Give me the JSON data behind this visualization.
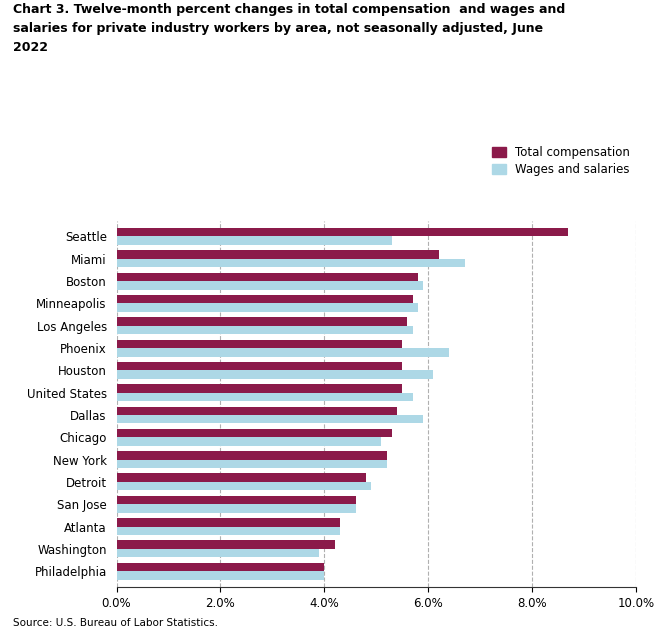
{
  "title_line1": "Chart 3. Twelve-month percent changes in total compensation  and wages and",
  "title_line2": "salaries for private industry workers by area, not seasonally adjusted, June",
  "title_line3": "2022",
  "categories": [
    "Philadelphia",
    "Washington",
    "Atlanta",
    "San Jose",
    "Detroit",
    "New York",
    "Chicago",
    "Dallas",
    "United States",
    "Houston",
    "Phoenix",
    "Los Angeles",
    "Minneapolis",
    "Boston",
    "Miami",
    "Seattle"
  ],
  "total_compensation": [
    4.0,
    4.2,
    4.3,
    4.6,
    4.8,
    5.2,
    5.3,
    5.4,
    5.5,
    5.5,
    5.5,
    5.6,
    5.7,
    5.8,
    6.2,
    8.7
  ],
  "wages_salaries": [
    4.0,
    3.9,
    4.3,
    4.6,
    4.9,
    5.2,
    5.1,
    5.9,
    5.7,
    6.1,
    6.4,
    5.7,
    5.8,
    5.9,
    6.7,
    5.3
  ],
  "color_total": "#8B1A4A",
  "color_wages": "#ADD8E6",
  "xlim": [
    0,
    10.0
  ],
  "xticks": [
    0.0,
    2.0,
    4.0,
    6.0,
    8.0,
    10.0
  ],
  "xtick_labels": [
    "0.0%",
    "2.0%",
    "4.0%",
    "6.0%",
    "8.0%",
    "10.0%"
  ],
  "legend_labels": [
    "Total compensation",
    "Wages and salaries"
  ],
  "source": "Source: U.S. Bureau of Labor Statistics.",
  "bar_height": 0.38,
  "background_color": "#ffffff",
  "grid_color": "#b0b0b0"
}
